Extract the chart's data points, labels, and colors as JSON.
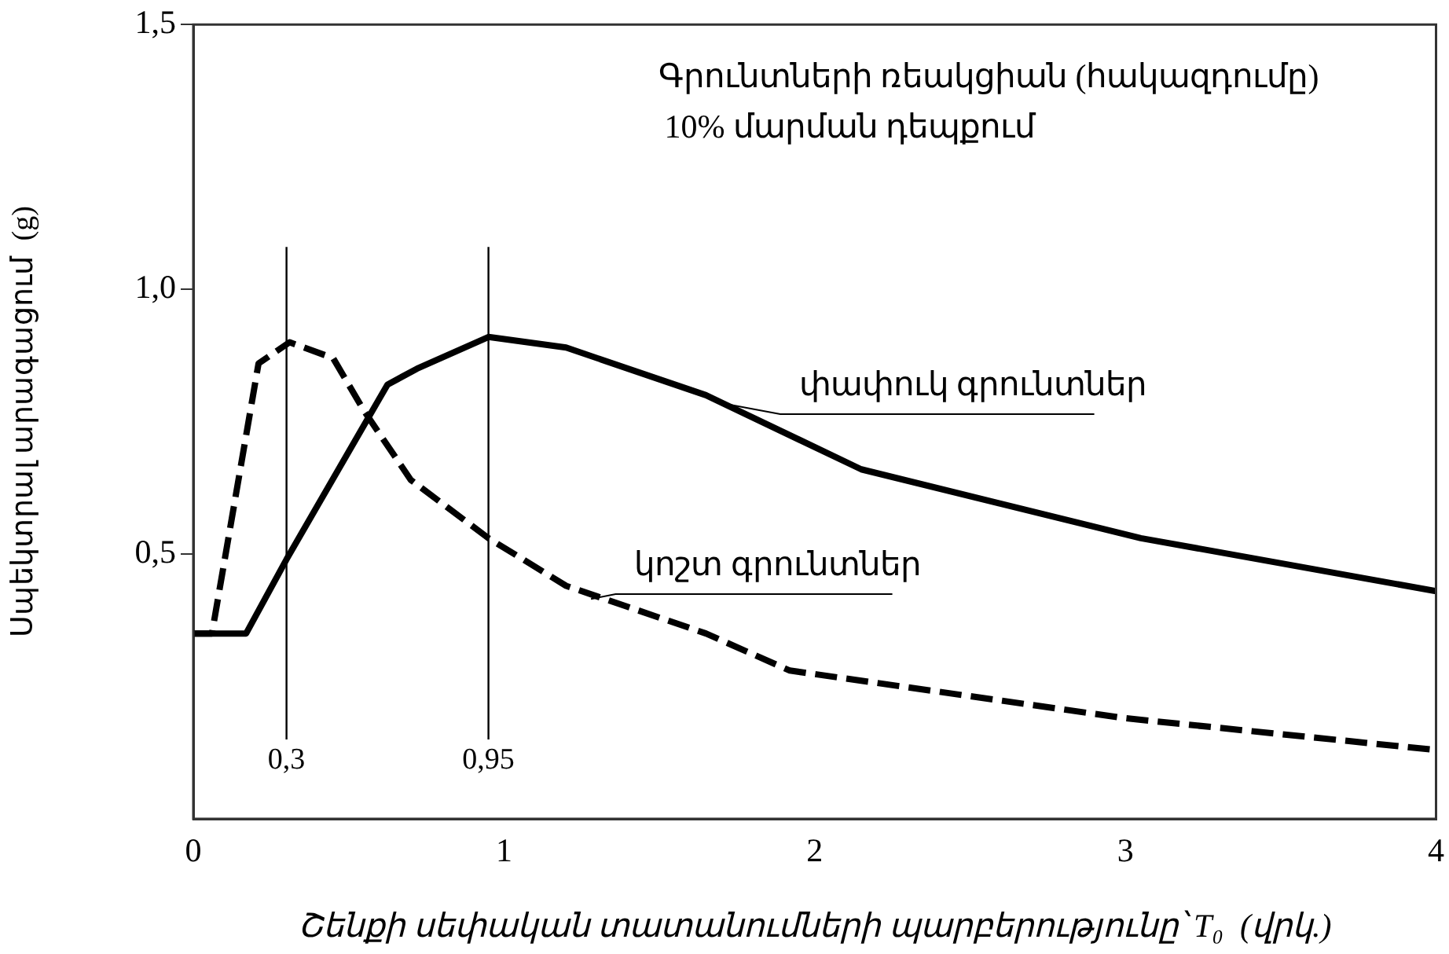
{
  "chart_data": {
    "type": "line",
    "xlabel": "Շենքի սեփական տատանումների պարբերությունը՝ T₀  (վրկ.)",
    "ylabel": "Սպեկտրալ արագացում  (g)",
    "annotations": [
      "Գրունտների ռեակցիան (հակազդումը)",
      "10% մարման դեպքում"
    ],
    "series": [
      {
        "name": "փափուկ գրունտներ",
        "color": "#000000",
        "line_style": "solid",
        "x": [
          0,
          0.17,
          0.3,
          0.625,
          0.72,
          0.95,
          1.2,
          1.65,
          2.15,
          3.05,
          4
        ],
        "values": [
          0.35,
          0.35,
          0.49,
          0.82,
          0.85,
          0.91,
          0.89,
          0.8,
          0.66,
          0.53,
          0.43
        ]
      },
      {
        "name": "կոշտ գրունտներ",
        "color": "#000000",
        "line_style": "dashed",
        "x": [
          0,
          0.06,
          0.21,
          0.31,
          0.45,
          0.55,
          0.7,
          0.95,
          1.2,
          1.65,
          1.92,
          3.0,
          4
        ],
        "values": [
          0.35,
          0.35,
          0.86,
          0.9,
          0.87,
          0.77,
          0.64,
          0.53,
          0.44,
          0.35,
          0.28,
          0.19,
          0.13
        ]
      }
    ],
    "xlim": [
      0,
      4
    ],
    "xticks": [
      0,
      1,
      2,
      3,
      4
    ],
    "ylim": [
      0,
      1.5
    ],
    "yticks": [
      {
        "value": 0.5,
        "label": "0,5"
      },
      {
        "value": 1.0,
        "label": "1,0"
      },
      {
        "value": 1.5,
        "label": "1,5"
      }
    ],
    "ref_lines": [
      {
        "axis": "x",
        "value": 0.3,
        "label": "0,3"
      },
      {
        "axis": "x",
        "value": 0.95,
        "label": "0,95"
      }
    ],
    "grid": false,
    "legend": false,
    "marker": "none"
  }
}
